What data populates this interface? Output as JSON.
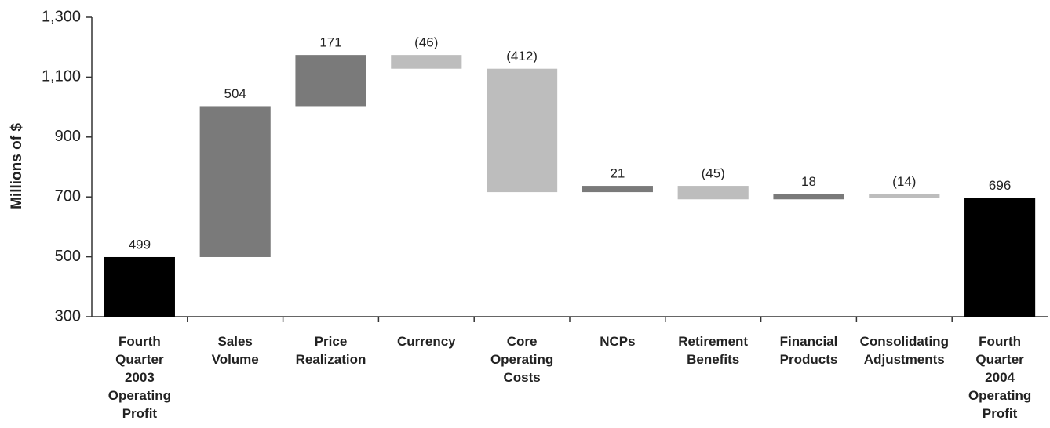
{
  "chart_data": {
    "type": "waterfall",
    "y_label": "Millions of $",
    "categories": [
      "Fourth Quarter 2003 Operating Profit",
      "Sales Volume",
      "Price Realization",
      "Currency",
      "Core Operating Costs",
      "NCPs",
      "Retirement Benefits",
      "Financial Products",
      "Consolidating Adjustments",
      "Fourth Quarter 2004 Operating Profit"
    ],
    "values": [
      499,
      504,
      171,
      -46,
      -412,
      21,
      -45,
      18,
      -14,
      696
    ],
    "value_labels": [
      "499",
      "504",
      "171",
      "(46)",
      "(412)",
      "21",
      "(45)",
      "18",
      "(14)",
      "696"
    ],
    "measures": [
      "absolute",
      "relative",
      "relative",
      "relative",
      "relative",
      "relative",
      "relative",
      "relative",
      "relative",
      "absolute"
    ],
    "total_color": "#000000",
    "increase_color": "#7a7a7a",
    "decrease_color": "#bdbdbd",
    "ylim": [
      300,
      1300
    ],
    "yticks": [
      300,
      500,
      700,
      900,
      {
        "value": 1100,
        "label": "1,100"
      },
      {
        "value": 1300,
        "label": "1,300"
      }
    ]
  }
}
